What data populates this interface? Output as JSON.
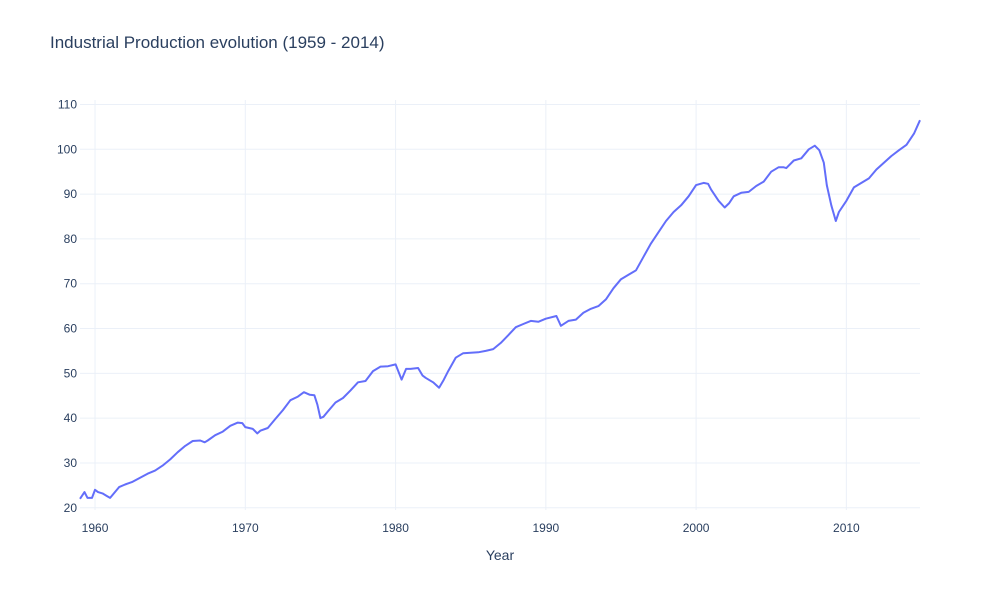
{
  "chart_data": {
    "type": "line",
    "title": "Industrial Production evolution (1959 - 2014)",
    "xlabel": "Year",
    "ylabel": "",
    "xlim": [
      1959,
      2014.9
    ],
    "ylim": [
      19.5,
      111
    ],
    "x_ticks": [
      1960,
      1970,
      1980,
      1990,
      2000,
      2010
    ],
    "y_ticks": [
      20,
      30,
      40,
      50,
      60,
      70,
      80,
      90,
      100,
      110
    ],
    "grid": true,
    "line_color": "#636efa",
    "grid_color": "#ebf0f8",
    "series": [
      {
        "x": [
          1959.0,
          1959.3,
          1959.5,
          1959.8,
          1960.0,
          1960.2,
          1960.5,
          1960.8,
          1961.0,
          1961.3,
          1961.6,
          1962.0,
          1962.5,
          1963.0,
          1963.5,
          1964.0,
          1964.5,
          1965.0,
          1965.5,
          1966.0,
          1966.5,
          1967.0,
          1967.3,
          1967.5,
          1968.0,
          1968.5,
          1969.0,
          1969.5,
          1969.8,
          1970.0,
          1970.5,
          1970.8,
          1971.0,
          1971.5,
          1972.0,
          1972.5,
          1973.0,
          1973.5,
          1973.9,
          1974.3,
          1974.6,
          1974.8,
          1975.0,
          1975.2,
          1975.5,
          1976.0,
          1976.5,
          1977.0,
          1977.5,
          1978.0,
          1978.5,
          1979.0,
          1979.5,
          1980.0,
          1980.4,
          1980.7,
          1981.0,
          1981.5,
          1981.8,
          1982.0,
          1982.5,
          1982.9,
          1983.2,
          1983.5,
          1984.0,
          1984.5,
          1985.0,
          1985.5,
          1986.0,
          1986.5,
          1987.0,
          1987.5,
          1988.0,
          1988.5,
          1989.0,
          1989.5,
          1990.0,
          1990.7,
          1991.0,
          1991.5,
          1992.0,
          1992.5,
          1993.0,
          1993.5,
          1994.0,
          1994.5,
          1995.0,
          1995.5,
          1996.0,
          1996.5,
          1997.0,
          1997.5,
          1998.0,
          1998.5,
          1999.0,
          1999.5,
          2000.0,
          2000.5,
          2000.8,
          2001.0,
          2001.5,
          2001.9,
          2002.2,
          2002.5,
          2003.0,
          2003.5,
          2004.0,
          2004.5,
          2005.0,
          2005.5,
          2005.8,
          2006.0,
          2006.5,
          2007.0,
          2007.5,
          2007.9,
          2008.2,
          2008.5,
          2008.7,
          2009.0,
          2009.3,
          2009.5,
          2010.0,
          2010.5,
          2011.0,
          2011.5,
          2012.0,
          2012.5,
          2013.0,
          2013.5,
          2014.0,
          2014.5,
          2014.9
        ],
        "y": [
          22.0,
          23.5,
          22.2,
          22.2,
          24.0,
          23.5,
          23.2,
          22.6,
          22.2,
          23.4,
          24.6,
          25.2,
          25.8,
          26.7,
          27.6,
          28.3,
          29.4,
          30.8,
          32.4,
          33.8,
          34.9,
          35.0,
          34.6,
          35.0,
          36.2,
          37.0,
          38.3,
          39.0,
          38.9,
          38.0,
          37.6,
          36.6,
          37.2,
          37.8,
          39.8,
          41.8,
          44.0,
          44.8,
          45.8,
          45.2,
          45.1,
          43.0,
          40.0,
          40.3,
          41.5,
          43.5,
          44.5,
          46.2,
          48.0,
          48.3,
          50.5,
          51.5,
          51.6,
          52.0,
          48.6,
          51.0,
          51.0,
          51.2,
          49.5,
          49.0,
          48.0,
          46.8,
          48.5,
          50.5,
          53.5,
          54.5,
          54.6,
          54.7,
          55.0,
          55.4,
          56.8,
          58.5,
          60.3,
          61.0,
          61.7,
          61.5,
          62.2,
          62.8,
          60.6,
          61.7,
          62.0,
          63.5,
          64.4,
          65.0,
          66.5,
          69.0,
          71.0,
          72.0,
          73.0,
          76.0,
          79.0,
          81.5,
          84.0,
          86.0,
          87.5,
          89.5,
          92.0,
          92.5,
          92.3,
          91.0,
          88.5,
          87.0,
          88.0,
          89.5,
          90.3,
          90.5,
          91.8,
          92.8,
          95.0,
          96.0,
          96.0,
          95.8,
          97.5,
          98.0,
          100.0,
          100.8,
          99.8,
          97.0,
          92.0,
          87.5,
          84.0,
          86.0,
          88.5,
          91.5,
          92.5,
          93.5,
          95.5,
          97.0,
          98.5,
          99.8,
          101.0,
          103.5,
          106.5
        ]
      }
    ]
  }
}
